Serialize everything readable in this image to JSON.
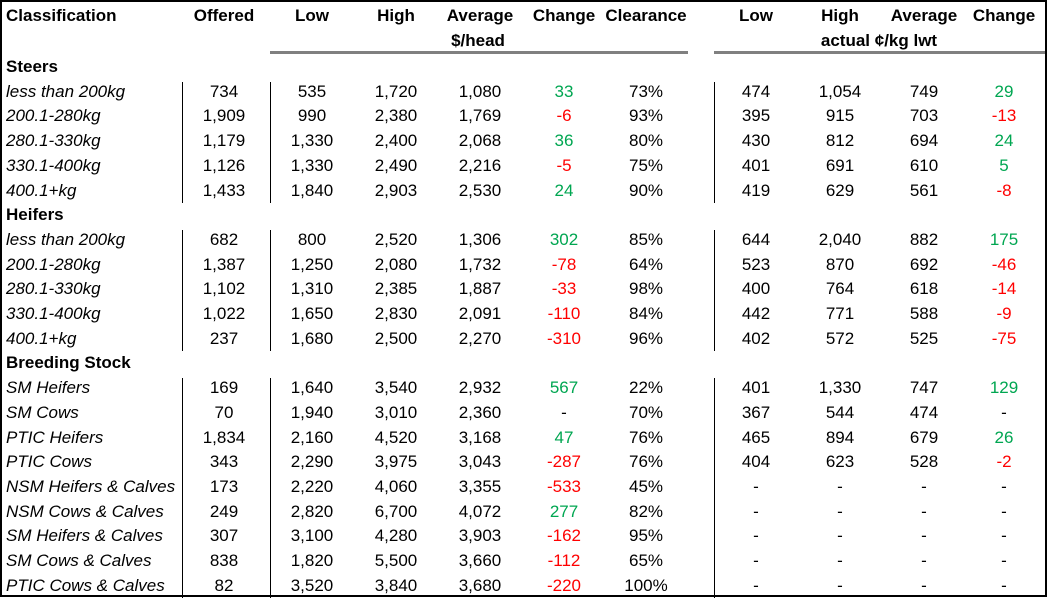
{
  "header": {
    "classification": "Classification",
    "offered": "Offered",
    "low": "Low",
    "high": "High",
    "average": "Average",
    "change": "Change",
    "clearance": "Clearance",
    "low2": "Low",
    "high2": "High",
    "average2": "Average",
    "change2": "Change",
    "unit_head": "$/head",
    "unit_kg": "actual ¢/kg lwt"
  },
  "groups": [
    {
      "name": "Steers",
      "rows": [
        {
          "label": "less than 200kg",
          "offered": "734",
          "low": "535",
          "high": "1,720",
          "avg": "1,080",
          "change": "33",
          "clearance": "73%",
          "kg_low": "474",
          "kg_high": "1,054",
          "kg_avg": "749",
          "kg_change": "29"
        },
        {
          "label": "200.1-280kg",
          "offered": "1,909",
          "low": "990",
          "high": "2,380",
          "avg": "1,769",
          "change": "-6",
          "clearance": "93%",
          "kg_low": "395",
          "kg_high": "915",
          "kg_avg": "703",
          "kg_change": "-13"
        },
        {
          "label": "280.1-330kg",
          "offered": "1,179",
          "low": "1,330",
          "high": "2,400",
          "avg": "2,068",
          "change": "36",
          "clearance": "80%",
          "kg_low": "430",
          "kg_high": "812",
          "kg_avg": "694",
          "kg_change": "24"
        },
        {
          "label": "330.1-400kg",
          "offered": "1,126",
          "low": "1,330",
          "high": "2,490",
          "avg": "2,216",
          "change": "-5",
          "clearance": "75%",
          "kg_low": "401",
          "kg_high": "691",
          "kg_avg": "610",
          "kg_change": "5"
        },
        {
          "label": "400.1+kg",
          "offered": "1,433",
          "low": "1,840",
          "high": "2,903",
          "avg": "2,530",
          "change": "24",
          "clearance": "90%",
          "kg_low": "419",
          "kg_high": "629",
          "kg_avg": "561",
          "kg_change": "-8"
        }
      ]
    },
    {
      "name": "Heifers",
      "rows": [
        {
          "label": "less than 200kg",
          "offered": "682",
          "low": "800",
          "high": "2,520",
          "avg": "1,306",
          "change": "302",
          "clearance": "85%",
          "kg_low": "644",
          "kg_high": "2,040",
          "kg_avg": "882",
          "kg_change": "175"
        },
        {
          "label": "200.1-280kg",
          "offered": "1,387",
          "low": "1,250",
          "high": "2,080",
          "avg": "1,732",
          "change": "-78",
          "clearance": "64%",
          "kg_low": "523",
          "kg_high": "870",
          "kg_avg": "692",
          "kg_change": "-46"
        },
        {
          "label": "280.1-330kg",
          "offered": "1,102",
          "low": "1,310",
          "high": "2,385",
          "avg": "1,887",
          "change": "-33",
          "clearance": "98%",
          "kg_low": "400",
          "kg_high": "764",
          "kg_avg": "618",
          "kg_change": "-14"
        },
        {
          "label": "330.1-400kg",
          "offered": "1,022",
          "low": "1,650",
          "high": "2,830",
          "avg": "2,091",
          "change": "-110",
          "clearance": "84%",
          "kg_low": "442",
          "kg_high": "771",
          "kg_avg": "588",
          "kg_change": "-9"
        },
        {
          "label": "400.1+kg",
          "offered": "237",
          "low": "1,680",
          "high": "2,500",
          "avg": "2,270",
          "change": "-310",
          "clearance": "96%",
          "kg_low": "402",
          "kg_high": "572",
          "kg_avg": "525",
          "kg_change": "-75"
        }
      ]
    },
    {
      "name": "Breeding Stock",
      "rows": [
        {
          "label": "SM Heifers",
          "offered": "169",
          "low": "1,640",
          "high": "3,540",
          "avg": "2,932",
          "change": "567",
          "clearance": "22%",
          "kg_low": "401",
          "kg_high": "1,330",
          "kg_avg": "747",
          "kg_change": "129"
        },
        {
          "label": "SM Cows",
          "offered": "70",
          "low": "1,940",
          "high": "3,010",
          "avg": "2,360",
          "change": "-",
          "clearance": "70%",
          "kg_low": "367",
          "kg_high": "544",
          "kg_avg": "474",
          "kg_change": "-"
        },
        {
          "label": "PTIC Heifers",
          "offered": "1,834",
          "low": "2,160",
          "high": "4,520",
          "avg": "3,168",
          "change": "47",
          "clearance": "76%",
          "kg_low": "465",
          "kg_high": "894",
          "kg_avg": "679",
          "kg_change": "26"
        },
        {
          "label": "PTIC Cows",
          "offered": "343",
          "low": "2,290",
          "high": "3,975",
          "avg": "3,043",
          "change": "-287",
          "clearance": "76%",
          "kg_low": "404",
          "kg_high": "623",
          "kg_avg": "528",
          "kg_change": "-2"
        },
        {
          "label": "NSM Heifers & Calves",
          "offered": "173",
          "low": "2,220",
          "high": "4,060",
          "avg": "3,355",
          "change": "-533",
          "clearance": "45%",
          "kg_low": "-",
          "kg_high": "-",
          "kg_avg": "-",
          "kg_change": "-"
        },
        {
          "label": "NSM Cows & Calves",
          "offered": "249",
          "low": "2,820",
          "high": "6,700",
          "avg": "4,072",
          "change": "277",
          "clearance": "82%",
          "kg_low": "-",
          "kg_high": "-",
          "kg_avg": "-",
          "kg_change": "-"
        },
        {
          "label": "SM Heifers & Calves",
          "offered": "307",
          "low": "3,100",
          "high": "4,280",
          "avg": "3,903",
          "change": "-162",
          "clearance": "95%",
          "kg_low": "-",
          "kg_high": "-",
          "kg_avg": "-",
          "kg_change": "-"
        },
        {
          "label": "SM Cows & Calves",
          "offered": "838",
          "low": "1,820",
          "high": "5,500",
          "avg": "3,660",
          "change": "-112",
          "clearance": "65%",
          "kg_low": "-",
          "kg_high": "-",
          "kg_avg": "-",
          "kg_change": "-"
        },
        {
          "label": "PTIC Cows & Calves",
          "offered": "82",
          "low": "3,520",
          "high": "3,840",
          "avg": "3,680",
          "change": "-220",
          "clearance": "100%",
          "kg_low": "-",
          "kg_high": "-",
          "kg_avg": "-",
          "kg_change": "-"
        }
      ]
    }
  ],
  "colors": {
    "positive": "#00a651",
    "negative": "#ff0000",
    "rule": "#808080"
  }
}
